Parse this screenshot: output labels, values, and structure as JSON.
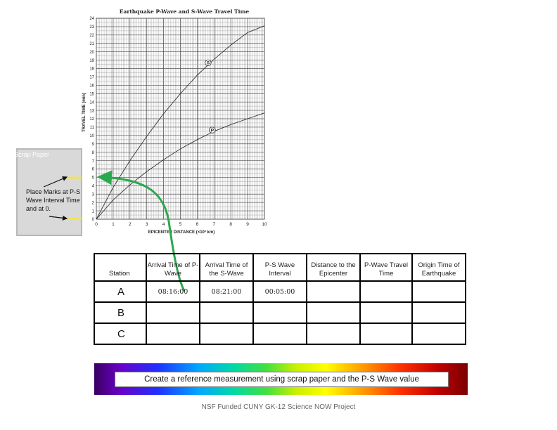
{
  "chart_data": {
    "type": "line",
    "title": "Earthquake P-Wave and S-Wave Travel Time",
    "xlabel": "EPICENTER DISTANCE (×10³ km)",
    "ylabel": "TRAVEL TIME (min)",
    "xlim": [
      0,
      10
    ],
    "ylim": [
      0,
      24
    ],
    "x_ticks": [
      "0",
      "1",
      "2",
      "3",
      "4",
      "5",
      "6",
      "7",
      "8",
      "9",
      "10"
    ],
    "y_ticks": [
      "0",
      "1",
      "2",
      "3",
      "4",
      "5",
      "6",
      "7",
      "8",
      "9",
      "10",
      "11",
      "12",
      "13",
      "14",
      "15",
      "16",
      "17",
      "18",
      "19",
      "20",
      "21",
      "22",
      "23",
      "24"
    ],
    "grid": true,
    "series": [
      {
        "name": "S",
        "x": [
          0,
          1,
          2,
          3,
          4,
          5,
          6,
          7,
          8,
          9,
          10
        ],
        "y": [
          0,
          3.8,
          7.0,
          9.9,
          12.6,
          15.0,
          17.2,
          19.1,
          20.8,
          22.3,
          23.1
        ]
      },
      {
        "name": "P",
        "x": [
          0,
          1,
          2,
          3,
          4,
          5,
          6,
          7,
          8,
          9,
          10
        ],
        "y": [
          0,
          2.3,
          4.1,
          5.7,
          7.1,
          8.4,
          9.5,
          10.5,
          11.3,
          12.0,
          12.7
        ]
      }
    ],
    "color": "#333333"
  },
  "scrap_paper": {
    "title": "Scrap Paper",
    "note": "Place Marks at P-S Wave Interval Time and at 0.",
    "mark_color": "#f2e34a",
    "arrow_color": "#2aa84f"
  },
  "table": {
    "headers": [
      "Station",
      "Arrival Time of P-Wave",
      "Arrival Time of the S-Wave",
      "P-S Wave Interval",
      "Distance to the Epicenter",
      "P-Wave Travel Time",
      "Origin Time of Earthquake"
    ],
    "rows": [
      {
        "station": "A",
        "p_arrival": "08:16:00",
        "s_arrival": "08:21:00",
        "ps_interval": "00:05:00",
        "distance": "",
        "p_travel": "",
        "origin": ""
      },
      {
        "station": "B",
        "p_arrival": "",
        "s_arrival": "",
        "ps_interval": "",
        "distance": "",
        "p_travel": "",
        "origin": ""
      },
      {
        "station": "C",
        "p_arrival": "",
        "s_arrival": "",
        "ps_interval": "",
        "distance": "",
        "p_travel": "",
        "origin": ""
      }
    ]
  },
  "banner": "Create a reference measurement using scrap paper and the P-S Wave value",
  "footer": "NSF Funded CUNY GK-12 Science NOW Project"
}
